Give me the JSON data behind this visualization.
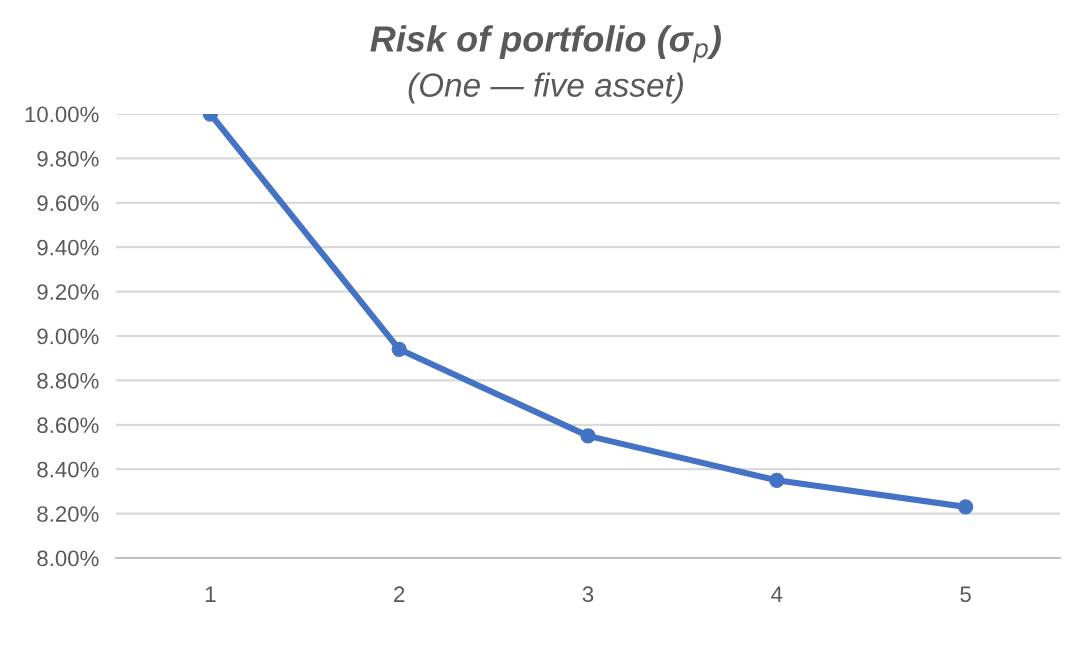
{
  "chart_data": {
    "type": "line",
    "title": "Risk of portfolio (σ$_{p}$)",
    "subtitle": "(One — five asset)",
    "categories": [
      "1",
      "2",
      "3",
      "4",
      "5"
    ],
    "series": [
      {
        "color": "#4472c4",
        "values": [
          10.0,
          8.94,
          8.55,
          8.35,
          8.23
        ]
      }
    ],
    "ylim": [
      8.0,
      10.0
    ],
    "yticks": [
      {
        "value": 8.0,
        "label": "8.00%"
      },
      {
        "value": 8.2,
        "label": "8.20%"
      },
      {
        "value": 8.4,
        "label": "8.40%"
      },
      {
        "value": 8.6,
        "label": "8.60%"
      },
      {
        "value": 8.8,
        "label": "8.80%"
      },
      {
        "value": 9.0,
        "label": "9.00%"
      },
      {
        "value": 9.2,
        "label": "9.20%"
      },
      {
        "value": 9.4,
        "label": "9.40%"
      },
      {
        "value": 9.6,
        "label": "9.60%"
      },
      {
        "value": 9.8,
        "label": "9.80%"
      },
      {
        "value": 10.0,
        "label": "10.00%"
      }
    ],
    "grid": "y",
    "legend": false,
    "marker": "circle",
    "line_style": "solid"
  }
}
